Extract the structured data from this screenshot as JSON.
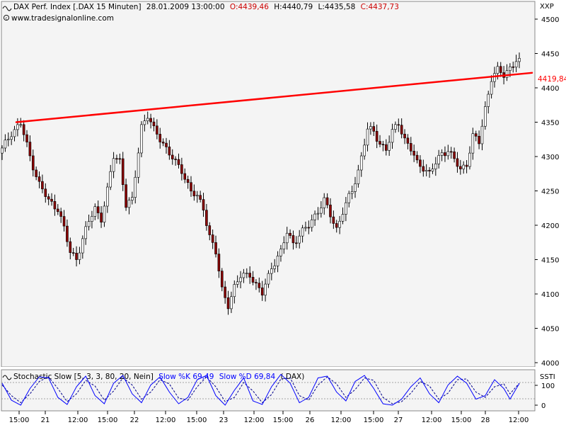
{
  "header": {
    "instrument": "DAX Perf. Index [.DAX  15 Minuten]",
    "timestamp": "28.01.2009 13:00:00",
    "open": "O:4439,46",
    "high": "H:4440,79",
    "low": "L:4435,58",
    "close": "C:4437,73",
    "source": "www.tradesignalonline.com",
    "copyright_icon": "copyright-icon",
    "axis_code": "XXP"
  },
  "trendline": {
    "label": "4419,84",
    "color": "#ff0000"
  },
  "stochastic": {
    "title": "Stochastic Slow [5, 3, 3, 80, 20, Nein]",
    "k_label": "Slow %K 69,49",
    "d_label": "Slow %D 69,84",
    "source": "(.DAX)",
    "axis_code": "SSTI",
    "y_ticks": [
      "100",
      "0"
    ],
    "k_color": "#0000ff",
    "d_color": "#00008b",
    "icon": "wave-icon"
  },
  "colors": {
    "background": "#ffffff",
    "plot_background": "#f4f4f4",
    "up_candle": "#ffffff",
    "down_candle": "#8b0000",
    "candle_outline": "#000000",
    "trendline": "#ff0000"
  },
  "chart_data": {
    "type": "candlestick",
    "ylim": [
      3985,
      4505
    ],
    "y_ticks": [
      "4500",
      "4450",
      "4400",
      "4350",
      "4300",
      "4250",
      "4200",
      "4150",
      "4100",
      "4050",
      "4000"
    ],
    "x_ticks": [
      "15:00",
      "21",
      "12:00",
      "15:00",
      "22",
      "12:00",
      "15:00",
      "23",
      "12:00",
      "15:00",
      "26",
      "12:00",
      "15:00",
      "27",
      "12:00",
      "15:00",
      "28",
      "12:00"
    ],
    "trendline": {
      "start": 4350,
      "end": 4419.84
    },
    "close_path": [
      [
        0,
        4310
      ],
      [
        3,
        4335
      ],
      [
        6,
        4348
      ],
      [
        9,
        4300
      ],
      [
        12,
        4260
      ],
      [
        15,
        4235
      ],
      [
        18,
        4225
      ],
      [
        20,
        4195
      ],
      [
        22,
        4160
      ],
      [
        24,
        4152
      ],
      [
        26,
        4180
      ],
      [
        28,
        4205
      ],
      [
        30,
        4225
      ],
      [
        32,
        4210
      ],
      [
        34,
        4250
      ],
      [
        36,
        4300
      ],
      [
        38,
        4295
      ],
      [
        40,
        4230
      ],
      [
        42,
        4235
      ],
      [
        45,
        4345
      ],
      [
        47,
        4360
      ],
      [
        49,
        4338
      ],
      [
        52,
        4320
      ],
      [
        54,
        4305
      ],
      [
        56,
        4290
      ],
      [
        58,
        4280
      ],
      [
        61,
        4250
      ],
      [
        63,
        4240
      ],
      [
        65,
        4225
      ],
      [
        67,
        4185
      ],
      [
        69,
        4160
      ],
      [
        71,
        4105
      ],
      [
        73,
        4085
      ],
      [
        75,
        4110
      ],
      [
        77,
        4125
      ],
      [
        80,
        4130
      ],
      [
        82,
        4112
      ],
      [
        84,
        4100
      ],
      [
        87,
        4140
      ],
      [
        90,
        4160
      ],
      [
        92,
        4190
      ],
      [
        94,
        4175
      ],
      [
        97,
        4190
      ],
      [
        99,
        4200
      ],
      [
        101,
        4215
      ],
      [
        104,
        4235
      ],
      [
        106,
        4215
      ],
      [
        108,
        4195
      ],
      [
        110,
        4220
      ],
      [
        113,
        4250
      ],
      [
        115,
        4280
      ],
      [
        118,
        4340
      ],
      [
        120,
        4335
      ],
      [
        122,
        4320
      ],
      [
        124,
        4310
      ],
      [
        126,
        4335
      ],
      [
        128,
        4350
      ],
      [
        130,
        4325
      ],
      [
        132,
        4310
      ],
      [
        134,
        4290
      ],
      [
        136,
        4285
      ],
      [
        138,
        4275
      ],
      [
        140,
        4290
      ],
      [
        142,
        4305
      ],
      [
        144,
        4310
      ],
      [
        146,
        4295
      ],
      [
        148,
        4280
      ],
      [
        150,
        4290
      ],
      [
        152,
        4330
      ],
      [
        154,
        4320
      ],
      [
        156,
        4370
      ],
      [
        158,
        4415
      ],
      [
        160,
        4425
      ],
      [
        162,
        4418
      ],
      [
        164,
        4430
      ],
      [
        166,
        4440
      ],
      [
        167,
        4437
      ]
    ],
    "stoch_k_path": [
      [
        0,
        70
      ],
      [
        3,
        22
      ],
      [
        6,
        8
      ],
      [
        9,
        55
      ],
      [
        12,
        88
      ],
      [
        15,
        85
      ],
      [
        18,
        30
      ],
      [
        21,
        10
      ],
      [
        24,
        60
      ],
      [
        27,
        90
      ],
      [
        30,
        35
      ],
      [
        33,
        12
      ],
      [
        36,
        70
      ],
      [
        39,
        92
      ],
      [
        42,
        40
      ],
      [
        45,
        15
      ],
      [
        48,
        65
      ],
      [
        51,
        88
      ],
      [
        54,
        45
      ],
      [
        57,
        12
      ],
      [
        60,
        30
      ],
      [
        63,
        80
      ],
      [
        66,
        92
      ],
      [
        69,
        35
      ],
      [
        72,
        8
      ],
      [
        75,
        50
      ],
      [
        78,
        85
      ],
      [
        81,
        20
      ],
      [
        84,
        10
      ],
      [
        87,
        60
      ],
      [
        90,
        95
      ],
      [
        93,
        70
      ],
      [
        96,
        15
      ],
      [
        99,
        30
      ],
      [
        102,
        85
      ],
      [
        105,
        90
      ],
      [
        108,
        45
      ],
      [
        111,
        20
      ],
      [
        114,
        75
      ],
      [
        117,
        92
      ],
      [
        120,
        55
      ],
      [
        123,
        12
      ],
      [
        126,
        8
      ],
      [
        129,
        25
      ],
      [
        132,
        60
      ],
      [
        135,
        85
      ],
      [
        138,
        40
      ],
      [
        141,
        15
      ],
      [
        144,
        65
      ],
      [
        147,
        90
      ],
      [
        150,
        70
      ],
      [
        153,
        25
      ],
      [
        156,
        35
      ],
      [
        159,
        80
      ],
      [
        162,
        55
      ],
      [
        164,
        25
      ],
      [
        167,
        69
      ]
    ],
    "stoch_d_path": [
      [
        0,
        65
      ],
      [
        3,
        35
      ],
      [
        6,
        15
      ],
      [
        9,
        40
      ],
      [
        12,
        75
      ],
      [
        15,
        88
      ],
      [
        18,
        55
      ],
      [
        21,
        18
      ],
      [
        24,
        40
      ],
      [
        27,
        78
      ],
      [
        30,
        62
      ],
      [
        33,
        22
      ],
      [
        36,
        48
      ],
      [
        39,
        85
      ],
      [
        42,
        65
      ],
      [
        45,
        25
      ],
      [
        48,
        45
      ],
      [
        51,
        80
      ],
      [
        54,
        68
      ],
      [
        57,
        28
      ],
      [
        60,
        22
      ],
      [
        63,
        60
      ],
      [
        66,
        88
      ],
      [
        69,
        60
      ],
      [
        72,
        18
      ],
      [
        75,
        30
      ],
      [
        78,
        72
      ],
      [
        81,
        48
      ],
      [
        84,
        15
      ],
      [
        87,
        38
      ],
      [
        90,
        82
      ],
      [
        93,
        85
      ],
      [
        96,
        35
      ],
      [
        99,
        22
      ],
      [
        102,
        65
      ],
      [
        105,
        88
      ],
      [
        108,
        68
      ],
      [
        111,
        30
      ],
      [
        114,
        52
      ],
      [
        117,
        85
      ],
      [
        120,
        78
      ],
      [
        123,
        30
      ],
      [
        126,
        12
      ],
      [
        129,
        18
      ],
      [
        132,
        42
      ],
      [
        135,
        75
      ],
      [
        138,
        62
      ],
      [
        141,
        25
      ],
      [
        144,
        42
      ],
      [
        147,
        80
      ],
      [
        150,
        82
      ],
      [
        153,
        45
      ],
      [
        156,
        30
      ],
      [
        159,
        60
      ],
      [
        162,
        68
      ],
      [
        164,
        40
      ],
      [
        167,
        70
      ]
    ]
  }
}
